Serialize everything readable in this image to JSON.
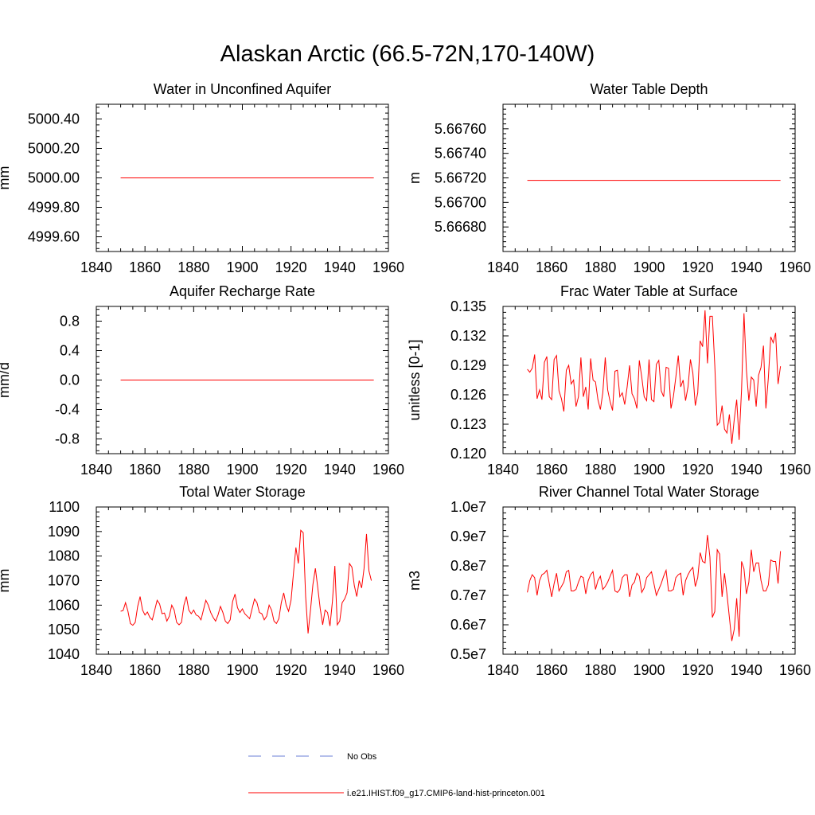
{
  "figure": {
    "title": "Alaskan Arctic (66.5-72N,170-140W)",
    "series_color": "#ff0000",
    "obs_color": "#6b7fd7"
  },
  "legend": {
    "items": [
      {
        "label": "No Obs",
        "style": "dashed",
        "color": "#6b7fd7"
      },
      {
        "label": "i.e21.IHIST.f09_g17.CMIP6-land-hist-princeton.001",
        "style": "solid",
        "color": "#ff0000"
      }
    ]
  },
  "chart_data": [
    {
      "type": "line",
      "title": "Water in Unconfined Aquifer",
      "xlabel": "",
      "ylabel": "mm",
      "xlim": [
        1840,
        1960
      ],
      "ylim": [
        4999.5,
        5000.5
      ],
      "xticks": [
        "1840",
        "1860",
        "1880",
        "1900",
        "1920",
        "1940",
        "1960"
      ],
      "yticks": [
        {
          "v": 4999.6,
          "label": "4999.60"
        },
        {
          "v": 4999.8,
          "label": "4999.80"
        },
        {
          "v": 5000.0,
          "label": "5000.00"
        },
        {
          "v": 5000.2,
          "label": "5000.20"
        },
        {
          "v": 5000.4,
          "label": "5000.40"
        }
      ],
      "x_start": 1850,
      "constant": 5000.0
    },
    {
      "type": "line",
      "title": "Water Table Depth",
      "xlabel": "",
      "ylabel": "m",
      "xlim": [
        1840,
        1960
      ],
      "ylim": [
        5.6666,
        5.6678
      ],
      "xticks": [
        "1840",
        "1860",
        "1880",
        "1900",
        "1920",
        "1940",
        "1960"
      ],
      "yticks": [
        {
          "v": 5.6668,
          "label": "5.66680"
        },
        {
          "v": 5.667,
          "label": "5.66700"
        },
        {
          "v": 5.6672,
          "label": "5.66720"
        },
        {
          "v": 5.6674,
          "label": "5.66740"
        },
        {
          "v": 5.6676,
          "label": "5.66760"
        }
      ],
      "x_start": 1850,
      "constant": 5.66718
    },
    {
      "type": "line",
      "title": "Aquifer Recharge Rate",
      "xlabel": "",
      "ylabel": "mm/d",
      "xlim": [
        1840,
        1960
      ],
      "ylim": [
        -1.0,
        1.0
      ],
      "xticks": [
        "1840",
        "1860",
        "1880",
        "1900",
        "1920",
        "1940",
        "1960"
      ],
      "yticks": [
        {
          "v": -0.8,
          "label": "-0.8"
        },
        {
          "v": -0.4,
          "label": "-0.4"
        },
        {
          "v": 0.0,
          "label": "0.0"
        },
        {
          "v": 0.4,
          "label": "0.4"
        },
        {
          "v": 0.8,
          "label": "0.8"
        }
      ],
      "x_start": 1850,
      "constant": 0.0
    },
    {
      "type": "line",
      "title": "Frac Water Table at Surface",
      "xlabel": "",
      "ylabel": "unitless [0-1]",
      "xlim": [
        1840,
        1960
      ],
      "ylim": [
        0.12,
        0.135
      ],
      "xticks": [
        "1840",
        "1860",
        "1880",
        "1900",
        "1920",
        "1940",
        "1960"
      ],
      "yticks": [
        {
          "v": 0.12,
          "label": "0.120"
        },
        {
          "v": 0.123,
          "label": "0.123"
        },
        {
          "v": 0.126,
          "label": "0.126"
        },
        {
          "v": 0.129,
          "label": "0.129"
        },
        {
          "v": 0.132,
          "label": "0.132"
        },
        {
          "v": 0.135,
          "label": "0.135"
        }
      ],
      "x_start": 1850,
      "values": [
        0.1286,
        0.1283,
        0.1287,
        0.1301,
        0.1256,
        0.1265,
        0.1255,
        0.1293,
        0.1299,
        0.1258,
        0.1255,
        0.1296,
        0.13,
        0.1264,
        0.1256,
        0.1243,
        0.1285,
        0.129,
        0.1271,
        0.1275,
        0.1248,
        0.1258,
        0.1298,
        0.1258,
        0.1268,
        0.1245,
        0.1297,
        0.1275,
        0.1273,
        0.1255,
        0.1245,
        0.1262,
        0.1298,
        0.1265,
        0.1253,
        0.1244,
        0.1284,
        0.1285,
        0.1258,
        0.1262,
        0.125,
        0.1268,
        0.129,
        0.1261,
        0.1256,
        0.1246,
        0.1295,
        0.1278,
        0.1258,
        0.1254,
        0.1296,
        0.1255,
        0.1253,
        0.1291,
        0.1295,
        0.1264,
        0.1258,
        0.1288,
        0.1287,
        0.1246,
        0.1258,
        0.1278,
        0.13,
        0.1268,
        0.1275,
        0.1254,
        0.1268,
        0.1296,
        0.1282,
        0.1249,
        0.1262,
        0.1315,
        0.1309,
        0.1346,
        0.1292,
        0.134,
        0.134,
        0.129,
        0.1229,
        0.1232,
        0.1249,
        0.1225,
        0.1221,
        0.124,
        0.121,
        0.1235,
        0.1255,
        0.1214,
        0.1265,
        0.1343,
        0.1285,
        0.1254,
        0.1278,
        0.1275,
        0.1248,
        0.128,
        0.1288,
        0.131,
        0.1246,
        0.1277,
        0.1319,
        0.1313,
        0.1323,
        0.1271,
        0.1289
      ]
    },
    {
      "type": "line",
      "title": "Total Water Storage",
      "xlabel": "",
      "ylabel": "mm",
      "xlim": [
        1840,
        1960
      ],
      "ylim": [
        1040,
        1100
      ],
      "xticks": [
        "1840",
        "1860",
        "1880",
        "1900",
        "1920",
        "1940",
        "1960"
      ],
      "yticks": [
        {
          "v": 1040,
          "label": "1040"
        },
        {
          "v": 1050,
          "label": "1050"
        },
        {
          "v": 1060,
          "label": "1060"
        },
        {
          "v": 1070,
          "label": "1070"
        },
        {
          "v": 1080,
          "label": "1080"
        },
        {
          "v": 1090,
          "label": "1090"
        },
        {
          "v": 1100,
          "label": "1100"
        }
      ],
      "x_start": 1850,
      "values": [
        1057.5,
        1057.8,
        1061.0,
        1057.5,
        1052.5,
        1051.8,
        1053.0,
        1059.5,
        1063.5,
        1058.0,
        1056.0,
        1057.2,
        1055.0,
        1054.0,
        1058.0,
        1062.0,
        1060.5,
        1056.5,
        1056.8,
        1053.5,
        1055.5,
        1060.0,
        1058.0,
        1053.0,
        1052.0,
        1053.0,
        1060.0,
        1063.5,
        1058.0,
        1056.5,
        1058.0,
        1056.0,
        1055.5,
        1054.0,
        1058.0,
        1062.0,
        1060.0,
        1057.0,
        1055.0,
        1053.5,
        1056.0,
        1059.5,
        1057.0,
        1053.5,
        1052.5,
        1054.0,
        1061.5,
        1064.5,
        1059.0,
        1057.0,
        1058.5,
        1056.5,
        1055.5,
        1054.5,
        1058.5,
        1062.5,
        1061.0,
        1057.0,
        1056.5,
        1054.0,
        1055.5,
        1060.0,
        1058.0,
        1053.5,
        1052.5,
        1054.5,
        1061.0,
        1065.0,
        1060.0,
        1057.5,
        1062.0,
        1073.0,
        1083.5,
        1077.0,
        1090.5,
        1089.5,
        1063.5,
        1048.5,
        1058.0,
        1068.5,
        1075.0,
        1067.0,
        1058.5,
        1052.0,
        1058.0,
        1057.0,
        1051.5,
        1061.5,
        1076.0,
        1052.0,
        1053.5,
        1061.0,
        1062.5,
        1065.0,
        1077.0,
        1075.5,
        1068.0,
        1063.5,
        1070.0,
        1067.0,
        1075.0,
        1089.0,
        1074.0,
        1070.0
      ]
    },
    {
      "type": "line",
      "title": "River Channel Total Water Storage",
      "xlabel": "",
      "ylabel": "m3",
      "xlim": [
        1840,
        1960
      ],
      "ylim": [
        0.5,
        1.0
      ],
      "y_scale_note": "values in units of 1e7 m3",
      "xticks": [
        "1840",
        "1860",
        "1880",
        "1900",
        "1920",
        "1940",
        "1960"
      ],
      "yticks": [
        {
          "v": 0.5,
          "label": "0.5e7"
        },
        {
          "v": 0.6,
          "label": "0.6e7"
        },
        {
          "v": 0.7,
          "label": "0.7e7"
        },
        {
          "v": 0.8,
          "label": "0.8e7"
        },
        {
          "v": 0.9,
          "label": "0.9e7"
        },
        {
          "v": 1.0,
          "label": "1.0e7"
        }
      ],
      "x_start": 1850,
      "values": [
        0.71,
        0.75,
        0.77,
        0.76,
        0.7,
        0.75,
        0.77,
        0.775,
        0.785,
        0.74,
        0.695,
        0.74,
        0.775,
        0.715,
        0.73,
        0.745,
        0.78,
        0.785,
        0.715,
        0.715,
        0.72,
        0.745,
        0.765,
        0.76,
        0.705,
        0.75,
        0.77,
        0.78,
        0.72,
        0.75,
        0.765,
        0.72,
        0.73,
        0.745,
        0.765,
        0.785,
        0.715,
        0.71,
        0.72,
        0.76,
        0.77,
        0.77,
        0.695,
        0.735,
        0.745,
        0.775,
        0.765,
        0.71,
        0.725,
        0.76,
        0.77,
        0.78,
        0.74,
        0.7,
        0.72,
        0.74,
        0.765,
        0.785,
        0.715,
        0.715,
        0.72,
        0.76,
        0.77,
        0.775,
        0.7,
        0.75,
        0.77,
        0.785,
        0.795,
        0.73,
        0.76,
        0.845,
        0.815,
        0.81,
        0.905,
        0.83,
        0.625,
        0.645,
        0.855,
        0.84,
        0.695,
        0.775,
        0.705,
        0.625,
        0.545,
        0.585,
        0.69,
        0.56,
        0.815,
        0.79,
        0.705,
        0.745,
        0.855,
        0.78,
        0.81,
        0.81,
        0.75,
        0.715,
        0.715,
        0.735,
        0.82,
        0.815,
        0.815,
        0.74,
        0.85
      ]
    }
  ]
}
